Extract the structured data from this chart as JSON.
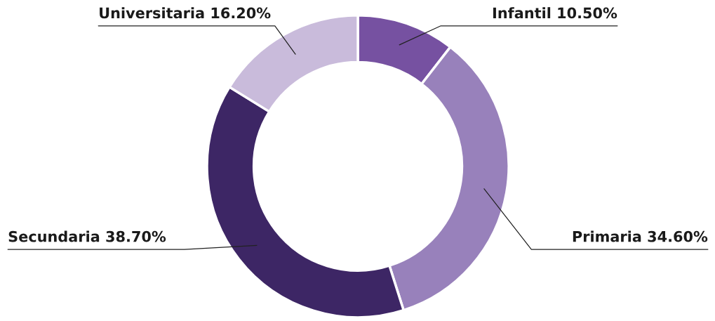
{
  "chart_data": {
    "type": "donut",
    "categories": [
      "Infantil",
      "Primaria",
      "Secundaria",
      "Universitaria"
    ],
    "values": [
      10.5,
      34.6,
      38.7,
      16.2
    ],
    "value_labels": [
      "10.50%",
      "34.60%",
      "38.70%",
      "16.20%"
    ],
    "colors": [
      "#7651a1",
      "#9881bb",
      "#3d2665",
      "#c9bbdb"
    ]
  }
}
